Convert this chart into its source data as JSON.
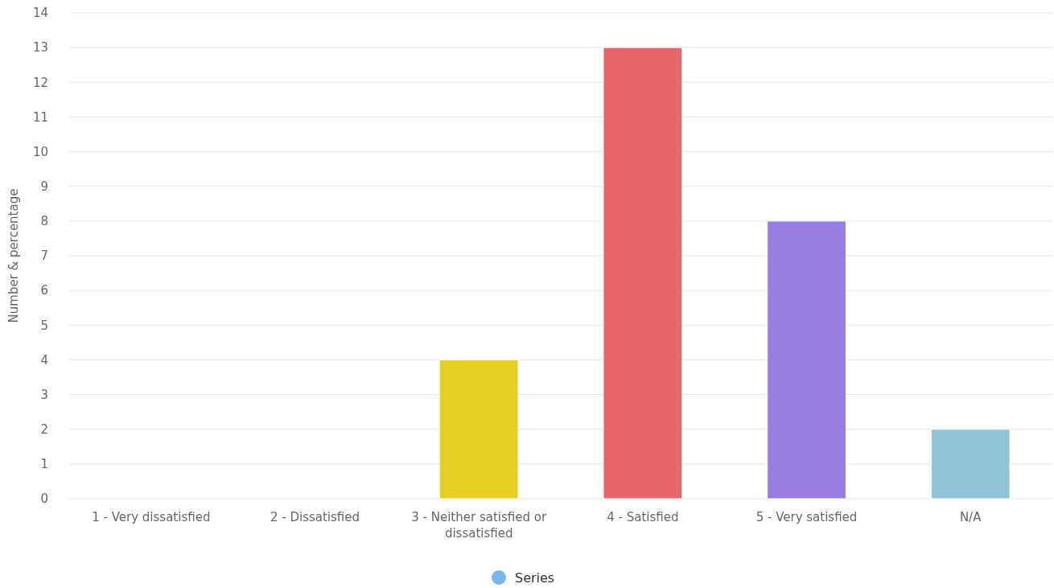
{
  "chart_data": {
    "type": "bar",
    "ylabel": "Number & percentage",
    "categories": [
      "1 - Very dissatisfied",
      "2 - Dissatisfied",
      "3 - Neither satisfied or dissatisfied",
      "4 - Satisfied",
      "5 - Very satisfied",
      "N/A"
    ],
    "series": [
      {
        "name": "Series",
        "color": "#7cb5ec",
        "colors": [
          "#7cb5ec",
          "#7cb5ec",
          "#e5cf22",
          "#e8666a",
          "#977ddd",
          "#91c4d6"
        ],
        "values": [
          0,
          0,
          4,
          13,
          8,
          2
        ]
      }
    ],
    "ylim": [
      0,
      14
    ],
    "yticks": [
      0,
      1,
      2,
      3,
      4,
      5,
      6,
      7,
      8,
      9,
      10,
      11,
      12,
      13,
      14
    ],
    "grid": "y",
    "legend": "bottom"
  }
}
